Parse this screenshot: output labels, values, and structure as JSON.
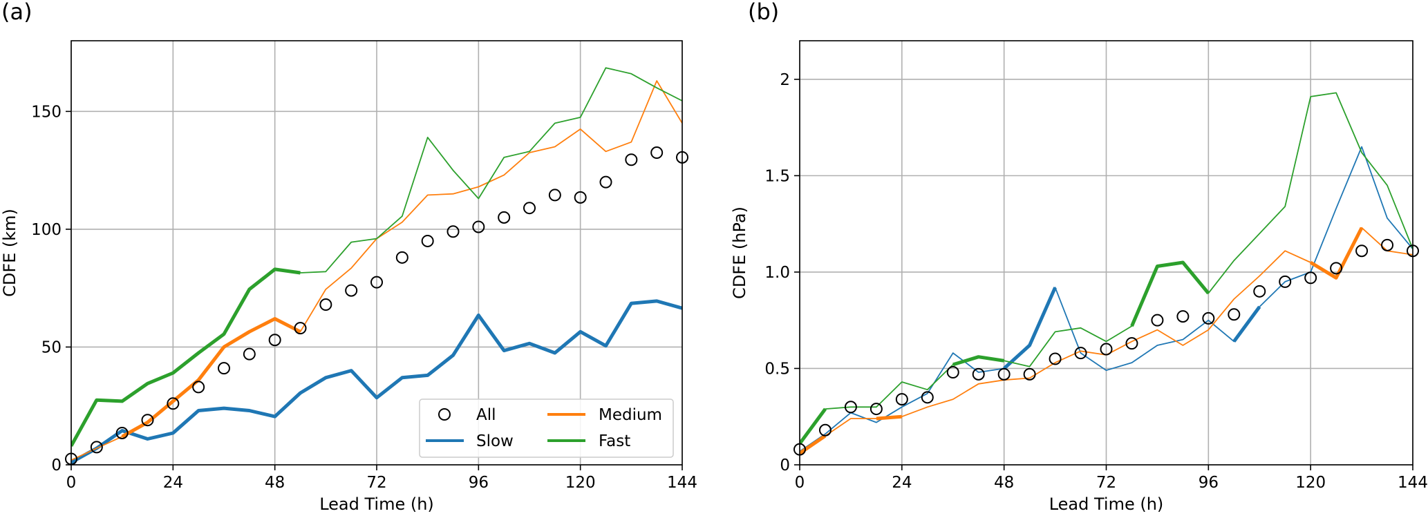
{
  "chart_data": [
    {
      "type": "line",
      "panel_label": "(a)",
      "xlabel": "Lead Time (h)",
      "ylabel": "CDFE (km)",
      "xlim": [
        0,
        144
      ],
      "ylim": [
        0,
        180
      ],
      "xticks": [
        0,
        24,
        48,
        72,
        96,
        120,
        144
      ],
      "yticks": [
        0,
        50,
        100,
        150
      ],
      "ytick_labels": [
        "0",
        "50",
        "100",
        "150"
      ],
      "grid": true,
      "legend": {
        "position": "lower-right",
        "columns": 2,
        "entries": [
          "All",
          "Medium",
          "Slow",
          "Fast"
        ]
      },
      "series": [
        {
          "name": "All",
          "kind": "markers",
          "color": "#000000",
          "x": [
            0,
            6,
            12,
            18,
            24,
            30,
            36,
            42,
            48,
            54,
            60,
            66,
            72,
            78,
            84,
            90,
            96,
            102,
            108,
            114,
            120,
            126,
            132,
            138,
            144
          ],
          "y": [
            2.5,
            7.5,
            13.5,
            19,
            26,
            33,
            41,
            47,
            53,
            58,
            68,
            74,
            77.5,
            88,
            95,
            99,
            101,
            105,
            109,
            114.5,
            113.5,
            120,
            129.5,
            132.5,
            130.5
          ]
        },
        {
          "name": "Slow",
          "color": "#1f77b4",
          "x": [
            0,
            6,
            12,
            18,
            24,
            30,
            36,
            42,
            48,
            54,
            60,
            66,
            72,
            78,
            84,
            90,
            96,
            102,
            108,
            114,
            120,
            126,
            132,
            138,
            144
          ],
          "y": [
            1,
            7,
            14.5,
            11,
            13.5,
            23,
            24,
            23,
            20.5,
            30.5,
            37,
            40,
            28.5,
            37,
            38,
            46.5,
            63.5,
            48.5,
            51.5,
            47.5,
            56.5,
            50.5,
            68.5,
            69.5,
            66.5
          ],
          "bold": [
            [
              0,
              144
            ]
          ]
        },
        {
          "name": "Medium",
          "color": "#ff7f0e",
          "x": [
            0,
            6,
            12,
            18,
            24,
            30,
            36,
            42,
            48,
            54,
            60,
            66,
            72,
            78,
            84,
            90,
            96,
            102,
            108,
            114,
            120,
            126,
            132,
            138,
            144
          ],
          "y": [
            2,
            7,
            12,
            18,
            27,
            36,
            50,
            56.5,
            62,
            56.5,
            74.5,
            83.5,
            96,
            103,
            114.5,
            115,
            118,
            123,
            132.5,
            135,
            142.5,
            133,
            137,
            163,
            145
          ],
          "bold": [
            [
              12,
              54
            ]
          ]
        },
        {
          "name": "Fast",
          "color": "#2ca02c",
          "x": [
            0,
            6,
            12,
            18,
            24,
            30,
            36,
            42,
            48,
            54,
            60,
            66,
            72,
            78,
            84,
            90,
            96,
            102,
            108,
            114,
            120,
            126,
            132,
            138,
            144
          ],
          "y": [
            8,
            27.5,
            27,
            34.5,
            39,
            47.5,
            55.5,
            74.5,
            83,
            81.5,
            82,
            94.5,
            96,
            105.5,
            139,
            125,
            113,
            130.5,
            133,
            145,
            147.5,
            168.5,
            166,
            160,
            154.5
          ],
          "bold": [
            [
              0,
              54
            ]
          ]
        }
      ]
    },
    {
      "type": "line",
      "panel_label": "(b)",
      "xlabel": "Lead Time (h)",
      "ylabel": "CDFE (hPa)",
      "xlim": [
        0,
        144
      ],
      "ylim": [
        0,
        2.2
      ],
      "xticks": [
        0,
        24,
        48,
        72,
        96,
        120,
        144
      ],
      "yticks": [
        0,
        0.5,
        1.0,
        1.5,
        2.0
      ],
      "ytick_labels": [
        "0",
        "0.5",
        "1.0",
        "1.5",
        "2"
      ],
      "grid": true,
      "series": [
        {
          "name": "All",
          "kind": "markers",
          "color": "#000000",
          "x": [
            0,
            6,
            12,
            18,
            24,
            30,
            36,
            42,
            48,
            54,
            60,
            66,
            72,
            78,
            84,
            90,
            96,
            102,
            108,
            114,
            120,
            126,
            132,
            138,
            144
          ],
          "y": [
            0.08,
            0.18,
            0.3,
            0.29,
            0.34,
            0.35,
            0.48,
            0.47,
            0.47,
            0.47,
            0.55,
            0.58,
            0.6,
            0.63,
            0.75,
            0.77,
            0.76,
            0.78,
            0.9,
            0.95,
            0.97,
            1.02,
            1.11,
            1.14,
            1.11
          ]
        },
        {
          "name": "Slow",
          "color": "#1f77b4",
          "x": [
            0,
            6,
            12,
            18,
            24,
            30,
            36,
            42,
            48,
            54,
            60,
            66,
            72,
            78,
            84,
            90,
            96,
            102,
            108,
            114,
            120,
            126,
            132,
            138,
            144
          ],
          "y": [
            0.07,
            0.16,
            0.27,
            0.22,
            0.3,
            0.37,
            0.58,
            0.48,
            0.5,
            0.62,
            0.92,
            0.58,
            0.49,
            0.53,
            0.62,
            0.65,
            0.75,
            0.64,
            0.82,
            0.95,
            1.0,
            1.33,
            1.65,
            1.28,
            1.12
          ],
          "bold": [
            [
              48,
              60
            ],
            [
              102,
              108
            ]
          ]
        },
        {
          "name": "Medium",
          "color": "#ff7f0e",
          "x": [
            0,
            6,
            12,
            18,
            24,
            30,
            36,
            42,
            48,
            54,
            60,
            66,
            72,
            78,
            84,
            90,
            96,
            102,
            108,
            114,
            120,
            126,
            132,
            138,
            144
          ],
          "y": [
            0.06,
            0.15,
            0.24,
            0.24,
            0.25,
            0.3,
            0.34,
            0.42,
            0.44,
            0.45,
            0.53,
            0.59,
            0.57,
            0.64,
            0.7,
            0.62,
            0.7,
            0.86,
            0.98,
            1.11,
            1.05,
            0.97,
            1.23,
            1.11,
            1.09
          ],
          "bold": [
            [
              0,
              6
            ],
            [
              18,
              24
            ],
            [
              120,
              132
            ]
          ]
        },
        {
          "name": "Fast",
          "color": "#2ca02c",
          "x": [
            0,
            6,
            12,
            18,
            24,
            30,
            36,
            42,
            48,
            54,
            60,
            66,
            72,
            78,
            84,
            90,
            96,
            102,
            108,
            114,
            120,
            126,
            132,
            138,
            144
          ],
          "y": [
            0.11,
            0.29,
            0.3,
            0.3,
            0.43,
            0.39,
            0.52,
            0.56,
            0.54,
            0.51,
            0.69,
            0.71,
            0.64,
            0.72,
            1.03,
            1.05,
            0.89,
            1.06,
            1.2,
            1.34,
            1.91,
            1.93,
            1.62,
            1.45,
            1.12
          ],
          "bold": [
            [
              0,
              6
            ],
            [
              36,
              48
            ],
            [
              78,
              96
            ]
          ]
        }
      ]
    }
  ]
}
